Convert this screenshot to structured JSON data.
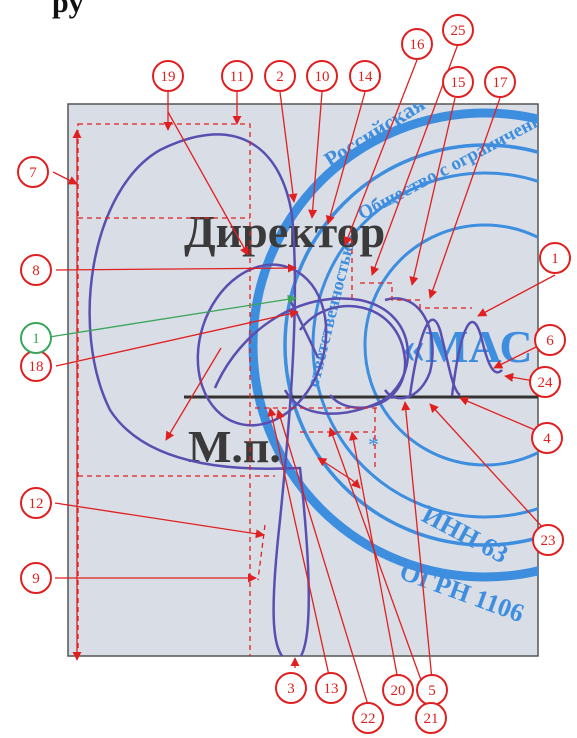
{
  "top_text": "py",
  "document": {
    "title_word": "Директор",
    "stamp_label": "М.п.",
    "stamp_arcs": [
      "Российская Федерация",
      "Общество с ограниченной",
      "ответственностью"
    ],
    "stamp_center": "«МАС",
    "stamp_lines": [
      "ИНН 63",
      "ОГРН 1106"
    ]
  },
  "callouts": [
    {
      "id": "c1r",
      "label": "1",
      "color": "#e02020"
    },
    {
      "id": "c2",
      "label": "2",
      "color": "#e02020"
    },
    {
      "id": "c3",
      "label": "3",
      "color": "#e02020"
    },
    {
      "id": "c4",
      "label": "4",
      "color": "#e02020"
    },
    {
      "id": "c5",
      "label": "5",
      "color": "#e02020"
    },
    {
      "id": "c6",
      "label": "6",
      "color": "#e02020"
    },
    {
      "id": "c7",
      "label": "7",
      "color": "#e02020"
    },
    {
      "id": "c8",
      "label": "8",
      "color": "#e02020"
    },
    {
      "id": "c9",
      "label": "9",
      "color": "#e02020"
    },
    {
      "id": "c10",
      "label": "10",
      "color": "#e02020"
    },
    {
      "id": "c11",
      "label": "11",
      "color": "#e02020"
    },
    {
      "id": "c12",
      "label": "12",
      "color": "#e02020"
    },
    {
      "id": "c13",
      "label": "13",
      "color": "#e02020"
    },
    {
      "id": "c14",
      "label": "14",
      "color": "#e02020"
    },
    {
      "id": "c15",
      "label": "15",
      "color": "#e02020"
    },
    {
      "id": "c16",
      "label": "16",
      "color": "#e02020"
    },
    {
      "id": "c17",
      "label": "17",
      "color": "#e02020"
    },
    {
      "id": "c18",
      "label": "18",
      "color": "#e02020"
    },
    {
      "id": "c19",
      "label": "19",
      "color": "#e02020"
    },
    {
      "id": "c20",
      "label": "20",
      "color": "#e02020"
    },
    {
      "id": "c21",
      "label": "21",
      "color": "#e02020"
    },
    {
      "id": "c22",
      "label": "22",
      "color": "#e02020"
    },
    {
      "id": "c23",
      "label": "23",
      "color": "#e02020"
    },
    {
      "id": "c24",
      "label": "24",
      "color": "#e02020"
    },
    {
      "id": "c25",
      "label": "25",
      "color": "#e02020"
    },
    {
      "id": "c1g",
      "label": "1",
      "color": "#3aa55a"
    }
  ],
  "colors": {
    "background": "#d9dde6",
    "stamp": "#3e8ee0",
    "signature": "#5a4fb0",
    "annotation": "#e02020",
    "highlight": "#3aa55a",
    "text": "#3a3a3a"
  }
}
